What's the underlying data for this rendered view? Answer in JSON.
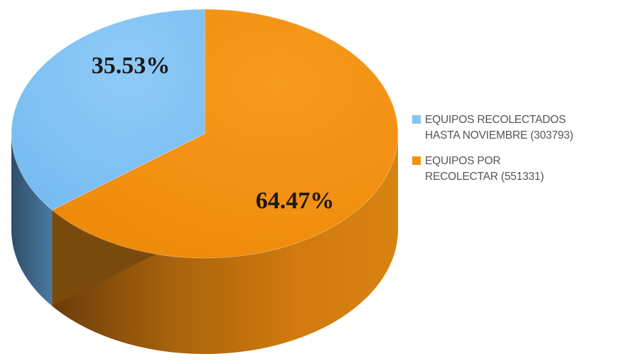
{
  "chart_data": {
    "type": "pie",
    "title": "",
    "series": [
      {
        "name": "EQUIPOS RECOLECTADOS HASTA NOVIEMBRE (303793)",
        "legend_lines": [
          "EQUIPOS RECOLECTADOS",
          "HASTA NOVIEMBRE (303793)"
        ],
        "value": 303793,
        "percent": 35.53,
        "label": "35.53%",
        "color": "#82c4f5",
        "side_color": "#3f6687"
      },
      {
        "name": "EQUIPOS POR RECOLECTAR (551331)",
        "legend_lines": [
          "EQUIPOS POR",
          "RECOLECTAR (551331)"
        ],
        "value": 551331,
        "percent": 64.47,
        "label": "64.47%",
        "color": "#f4900f",
        "side_color": "#c0720e"
      }
    ],
    "legend_position": "right",
    "style": "3d"
  }
}
